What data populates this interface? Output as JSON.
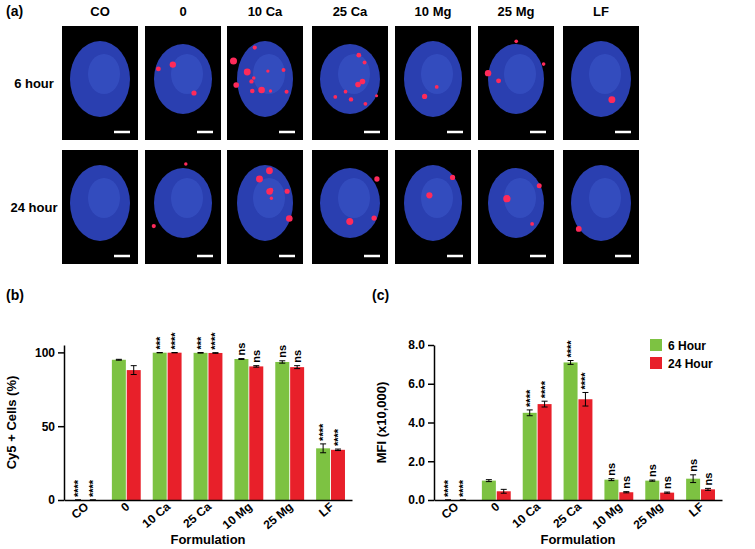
{
  "image_panel": {
    "label": "(a)",
    "columns": [
      "CO",
      "0",
      "10 Ca",
      "25 Ca",
      "10 Mg",
      "25 Mg",
      "LF"
    ],
    "rows": [
      "6 hour",
      "24 hour"
    ]
  },
  "chart_data": [
    {
      "type": "bar",
      "label": "(b)",
      "y_label": "Cy5 + Cells (%)",
      "x_label": "Formulation",
      "categories": [
        "CO",
        "0",
        "10 Ca",
        "25 Ca",
        "10 Mg",
        "25 Mg",
        "LF"
      ],
      "series": [
        {
          "name": "6 Hour",
          "color": "#7dc242",
          "values": [
            0,
            95,
            99.8,
            99.7,
            95.5,
            93.5,
            35
          ],
          "errors": [
            0,
            0.3,
            0.1,
            0.2,
            0.3,
            0.8,
            3
          ],
          "annotations": [
            "****",
            null,
            "***",
            "***",
            "ns",
            "ns",
            "****"
          ]
        },
        {
          "name": "24 Hour",
          "color": "#e8202a",
          "values": [
            0,
            88,
            99.8,
            99.6,
            90.5,
            90,
            34
          ],
          "errors": [
            0,
            3,
            0.1,
            0.2,
            0.5,
            1,
            0.5
          ],
          "annotations": [
            "****",
            null,
            "****",
            "****",
            "ns",
            "ns",
            "****"
          ]
        }
      ],
      "ylim": [
        0,
        105
      ],
      "yticks": [
        0,
        50,
        100
      ],
      "grid": false
    },
    {
      "type": "bar",
      "label": "(c)",
      "y_label": "MFI (x10,000)",
      "x_label": "Formulation",
      "categories": [
        "CO",
        "0",
        "10 Ca",
        "25 Ca",
        "10 Mg",
        "25 Mg",
        "LF"
      ],
      "series": [
        {
          "name": "6 Hour",
          "color": "#7dc242",
          "values": [
            0,
            1.0,
            4.5,
            7.1,
            1.05,
            1.0,
            1.1
          ],
          "errors": [
            0,
            0.05,
            0.15,
            0.1,
            0.05,
            0.03,
            0.2
          ],
          "annotations": [
            "****",
            null,
            "****",
            "****",
            "ns",
            "ns",
            "ns"
          ]
        },
        {
          "name": "24 Hour",
          "color": "#e8202a",
          "values": [
            0,
            0.45,
            4.95,
            5.2,
            0.4,
            0.38,
            0.55
          ],
          "errors": [
            0,
            0.1,
            0.15,
            0.35,
            0.03,
            0.03,
            0.05
          ],
          "annotations": [
            "****",
            null,
            "****",
            "****",
            "ns",
            "ns",
            "ns"
          ]
        }
      ],
      "ylim": [
        0,
        8
      ],
      "yticks": [
        {
          "value": 0,
          "label": "0.0"
        },
        {
          "value": 2,
          "label": "2.0"
        },
        {
          "value": 4,
          "label": "4.0"
        },
        {
          "value": 6,
          "label": "6.0"
        },
        {
          "value": 8,
          "label": "8.0"
        }
      ],
      "grid": false,
      "legend": "top-right"
    }
  ]
}
